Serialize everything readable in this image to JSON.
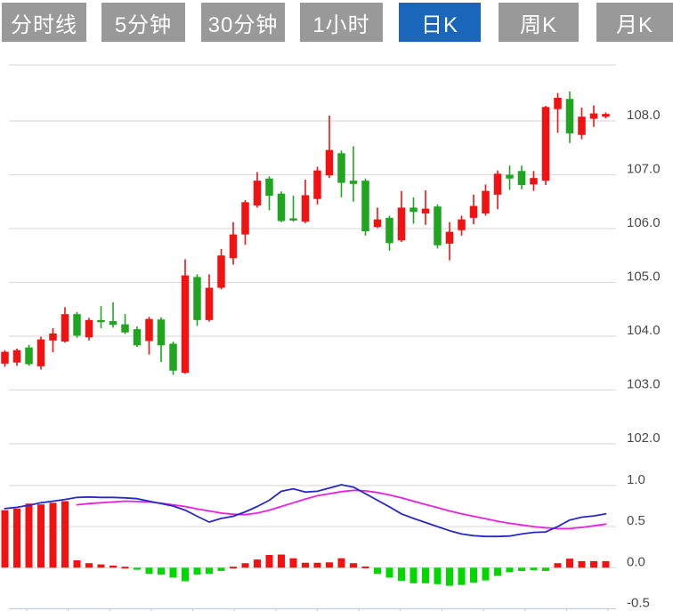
{
  "tabs": {
    "items": [
      {
        "label": "分时线",
        "active": false
      },
      {
        "label": "5分钟",
        "active": false
      },
      {
        "label": "30分钟",
        "active": false
      },
      {
        "label": "1小时",
        "active": false
      },
      {
        "label": "日K",
        "active": true
      },
      {
        "label": "周K",
        "active": false
      },
      {
        "label": "月K",
        "active": false
      }
    ]
  },
  "colors": {
    "up": "#f21212",
    "down": "#1fa51f",
    "hist_up": "#f21212",
    "hist_down": "#00d800",
    "dif_line": "#2828c8",
    "dea_line": "#ec1ee0",
    "grid": "#dddddd",
    "axis_line": "#c9ced4",
    "axis_text": "#4a4a4a",
    "tab_bg": "#999999",
    "tab_active_bg": "#1a66bb",
    "tab_text": "#ffffff"
  },
  "chart_data": {
    "type": "candlestick+macd",
    "title": "",
    "legend": "none",
    "grid": true,
    "price_axis": {
      "side": "right",
      "tick_labels": [
        "108.0",
        "107.0",
        "106.0",
        "105.0",
        "104.0",
        "103.0",
        "102.0"
      ],
      "ticks": [
        108.0,
        107.0,
        106.0,
        105.0,
        104.0,
        103.0,
        102.0
      ],
      "has_unlabeled_top_gridline": true,
      "range_shown": [
        101.6,
        109.0
      ]
    },
    "macd_axis": {
      "side": "right",
      "tick_labels": [
        "1.0",
        "0.5",
        "0.0",
        "-0.5"
      ],
      "ticks": [
        1.0,
        0.5,
        0.0,
        -0.5
      ],
      "range_shown": [
        -0.55,
        1.1
      ]
    },
    "candle_format": "[open, high, low, close]",
    "candles": [
      [
        103.49,
        103.74,
        103.43,
        103.71
      ],
      [
        103.51,
        103.77,
        103.45,
        103.74
      ],
      [
        103.79,
        103.84,
        103.45,
        103.48
      ],
      [
        103.44,
        103.99,
        103.38,
        103.94
      ],
      [
        103.92,
        104.15,
        103.7,
        104.05
      ],
      [
        103.9,
        104.54,
        103.88,
        104.41
      ],
      [
        104.41,
        104.45,
        103.97,
        104.01
      ],
      [
        103.98,
        104.34,
        103.92,
        104.3
      ],
      [
        104.3,
        104.56,
        104.15,
        104.26
      ],
      [
        104.28,
        104.63,
        104.16,
        104.21
      ],
      [
        104.22,
        104.41,
        104.04,
        104.07
      ],
      [
        104.13,
        104.18,
        103.8,
        103.83
      ],
      [
        103.91,
        104.36,
        103.66,
        104.32
      ],
      [
        104.31,
        104.35,
        103.52,
        103.83
      ],
      [
        103.86,
        103.9,
        103.28,
        103.36
      ],
      [
        103.32,
        105.43,
        103.3,
        105.13
      ],
      [
        105.1,
        105.15,
        104.19,
        104.3
      ],
      [
        104.3,
        105.15,
        104.27,
        104.9
      ],
      [
        104.9,
        105.62,
        104.87,
        105.5
      ],
      [
        105.45,
        106.12,
        105.33,
        105.89
      ],
      [
        105.89,
        106.53,
        105.7,
        106.49
      ],
      [
        106.43,
        107.05,
        106.39,
        106.89
      ],
      [
        106.93,
        106.97,
        106.34,
        106.61
      ],
      [
        106.65,
        106.69,
        106.12,
        106.14
      ],
      [
        106.19,
        106.61,
        106.13,
        106.15
      ],
      [
        106.13,
        106.91,
        106.1,
        106.62
      ],
      [
        106.55,
        107.15,
        106.45,
        107.08
      ],
      [
        106.99,
        108.1,
        106.94,
        107.46
      ],
      [
        107.4,
        107.45,
        106.58,
        106.85
      ],
      [
        106.89,
        107.53,
        106.5,
        106.83
      ],
      [
        106.89,
        106.93,
        105.87,
        105.95
      ],
      [
        106.03,
        106.39,
        106.01,
        106.17
      ],
      [
        106.2,
        106.24,
        105.59,
        105.73
      ],
      [
        105.78,
        106.7,
        105.75,
        106.39
      ],
      [
        106.39,
        106.58,
        106.09,
        106.31
      ],
      [
        106.28,
        106.71,
        106.07,
        106.37
      ],
      [
        106.41,
        106.45,
        105.63,
        105.69
      ],
      [
        105.72,
        106.12,
        105.41,
        105.94
      ],
      [
        105.97,
        106.24,
        105.87,
        106.17
      ],
      [
        106.2,
        106.63,
        106.08,
        106.42
      ],
      [
        106.28,
        106.82,
        106.24,
        106.7
      ],
      [
        106.63,
        107.08,
        106.36,
        107.02
      ],
      [
        107.0,
        107.17,
        106.72,
        106.93
      ],
      [
        107.07,
        107.17,
        106.73,
        106.81
      ],
      [
        106.82,
        107.07,
        106.7,
        106.94
      ],
      [
        106.89,
        108.28,
        106.81,
        108.26
      ],
      [
        108.22,
        108.52,
        107.78,
        108.43
      ],
      [
        108.41,
        108.55,
        107.59,
        107.77
      ],
      [
        107.74,
        108.25,
        107.66,
        108.08
      ],
      [
        108.04,
        108.29,
        107.89,
        108.14
      ],
      [
        108.08,
        108.16,
        108.05,
        108.13
      ]
    ],
    "macd": {
      "histogram": [
        0.7,
        0.72,
        0.78,
        0.77,
        0.79,
        0.81,
        0.09,
        0.055,
        0.04,
        0.025,
        0.012,
        -0.025,
        -0.075,
        -0.085,
        -0.12,
        -0.165,
        -0.085,
        -0.075,
        -0.04,
        0.012,
        0.055,
        0.1,
        0.155,
        0.16,
        0.115,
        0.06,
        0.06,
        0.065,
        0.115,
        0.055,
        0.015,
        -0.075,
        -0.12,
        -0.16,
        -0.19,
        -0.19,
        -0.2,
        -0.22,
        -0.21,
        -0.18,
        -0.155,
        -0.1,
        -0.055,
        -0.04,
        -0.03,
        -0.04,
        0.055,
        0.11,
        0.08,
        0.08,
        0.08
      ],
      "dif": [
        0.72,
        0.735,
        0.76,
        0.79,
        0.81,
        0.83,
        0.855,
        0.86,
        0.855,
        0.855,
        0.85,
        0.84,
        0.81,
        0.78,
        0.75,
        0.7,
        0.625,
        0.555,
        0.6,
        0.625,
        0.68,
        0.745,
        0.82,
        0.93,
        0.96,
        0.92,
        0.93,
        0.97,
        1.01,
        0.98,
        0.9,
        0.82,
        0.74,
        0.655,
        0.6,
        0.55,
        0.5,
        0.45,
        0.41,
        0.39,
        0.38,
        0.38,
        0.385,
        0.41,
        0.43,
        0.435,
        0.5,
        0.58,
        0.615,
        0.63,
        0.655
      ],
      "dea": [
        null,
        null,
        null,
        null,
        null,
        null,
        0.765,
        0.78,
        0.79,
        0.8,
        0.81,
        0.805,
        0.8,
        0.785,
        0.765,
        0.745,
        0.715,
        0.69,
        0.665,
        0.65,
        0.645,
        0.665,
        0.7,
        0.745,
        0.79,
        0.835,
        0.875,
        0.9,
        0.925,
        0.94,
        0.935,
        0.915,
        0.885,
        0.85,
        0.81,
        0.77,
        0.73,
        0.69,
        0.655,
        0.625,
        0.595,
        0.565,
        0.54,
        0.52,
        0.5,
        0.485,
        0.475,
        0.475,
        0.49,
        0.51,
        0.53
      ]
    }
  }
}
